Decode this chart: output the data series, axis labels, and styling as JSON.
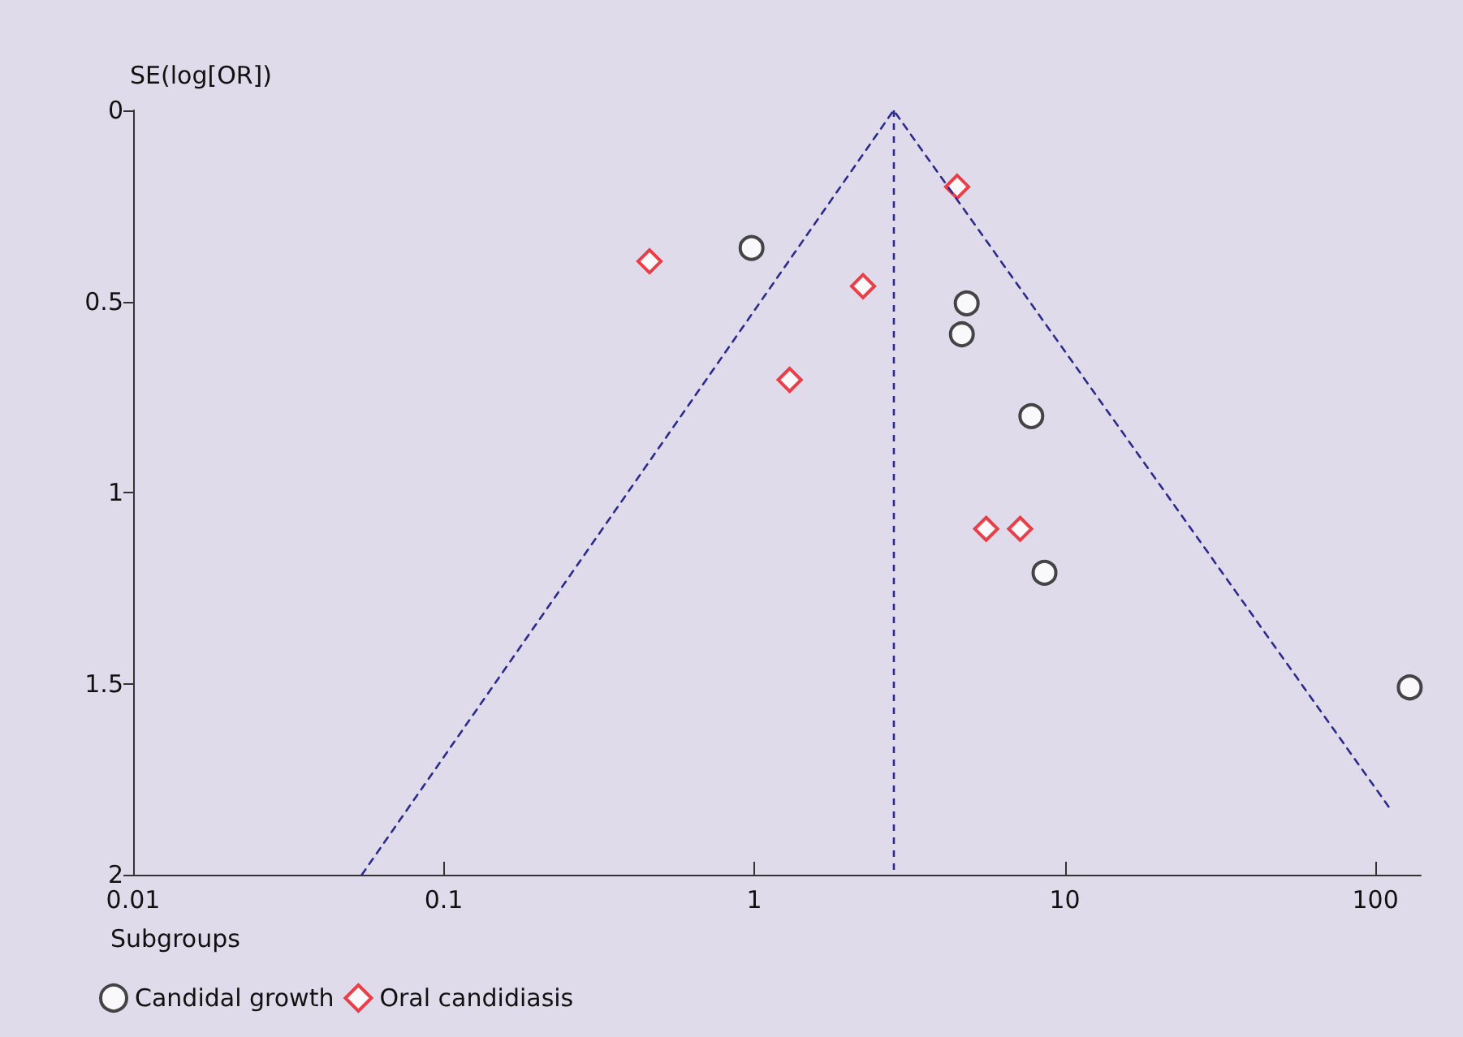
{
  "chart_data": {
    "type": "scatter",
    "ylabel": "SE(log[OR])",
    "legend_title": "Subgroups",
    "log": "x",
    "xlim": [
      0.01,
      140
    ],
    "xticks": [
      0.01,
      0.1,
      1,
      10,
      100
    ],
    "ylim": [
      2,
      0
    ],
    "yticks": [
      0,
      0.5,
      1,
      1.5,
      2
    ],
    "grid": false,
    "legend": "bottom left",
    "series": [
      {
        "name": "Candidal growth",
        "color": "#1a1a1a",
        "marker": "circle",
        "x": [
          0.98,
          4.83,
          4.66,
          7.8,
          8.6,
          129
        ],
        "values": [
          0.36,
          0.505,
          0.586,
          0.8,
          1.21,
          1.51
        ]
      },
      {
        "name": "Oral candidiasis",
        "color": "#e8141e",
        "marker": "diamond",
        "x": [
          0.46,
          4.5,
          2.24,
          1.3,
          5.58,
          7.18
        ],
        "values": [
          0.395,
          0.2,
          0.46,
          0.705,
          1.095,
          1.095
        ]
      },
      {
        "type": "line",
        "color": "#2b2b8c",
        "marker": "none",
        "line_style": "dashed",
        "x": [
          0.0545,
          2.81,
          113
        ],
        "values": [
          2,
          0,
          1.834
        ]
      }
    ],
    "ref_lines": [
      {
        "axis": "x",
        "value": 2.81,
        "color": "#2b2b8c",
        "line_style": "dashed"
      }
    ]
  }
}
